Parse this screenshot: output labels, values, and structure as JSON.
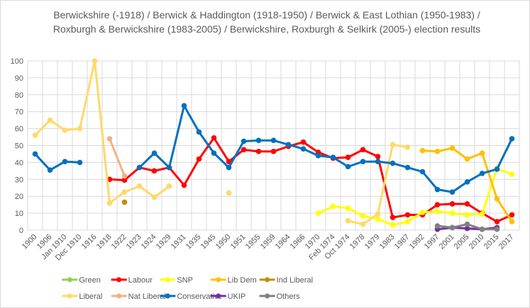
{
  "chart_data": {
    "type": "line",
    "title": "Berwickshire (-1918) / Berwick & Haddington (1918-1950) / Berwick & East Lothian (1950-1983) / Roxburgh & Berwickshire (1983-2005) / Berwickshire, Roxburgh & Selkirk (2005-) election results",
    "xlabel": "",
    "ylabel": "",
    "ylim": [
      0,
      100
    ],
    "yticks": [
      0,
      10,
      20,
      30,
      40,
      50,
      60,
      70,
      80,
      90,
      100
    ],
    "grid": true,
    "legend_position": "bottom",
    "categories": [
      "1900",
      "1906",
      "Jan 1910",
      "Dec 1910",
      "1916",
      "1918",
      "1922",
      "1923",
      "1924",
      "1929",
      "1931",
      "1935",
      "1945",
      "1950",
      "1951",
      "1955",
      "1959",
      "1964",
      "1966",
      "1970",
      "Feb 1974",
      "Oct 1974",
      "1978",
      "1979",
      "1983",
      "1987",
      "1992",
      "1997",
      "2001",
      "2005",
      "2010",
      "2015",
      "2017"
    ],
    "series": [
      {
        "name": "Green",
        "color": "#92d050",
        "values": [
          null,
          null,
          null,
          null,
          null,
          null,
          null,
          null,
          null,
          null,
          null,
          null,
          null,
          null,
          null,
          null,
          null,
          null,
          null,
          null,
          null,
          null,
          null,
          null,
          null,
          null,
          null,
          null,
          null,
          null,
          null,
          null,
          null
        ]
      },
      {
        "name": "Labour",
        "color": "#ff0000",
        "values": [
          null,
          null,
          null,
          null,
          null,
          30,
          29.5,
          37,
          35,
          37,
          26.5,
          42,
          54.5,
          40.5,
          47.5,
          46.5,
          46.5,
          49.5,
          52,
          46,
          42.5,
          43,
          47.5,
          43.5,
          7.5,
          9,
          9,
          15,
          15.5,
          15.5,
          10,
          5,
          9
        ]
      },
      {
        "name": "SNP",
        "color": "#ffff00",
        "values": [
          null,
          null,
          null,
          null,
          null,
          null,
          null,
          null,
          null,
          null,
          null,
          null,
          null,
          null,
          null,
          null,
          null,
          null,
          null,
          10,
          14,
          13,
          8.5,
          6.5,
          3,
          5,
          10.5,
          11,
          10,
          9,
          9.5,
          36.5,
          33
        ]
      },
      {
        "name": "Lib Dem",
        "color": "#ffc000",
        "values": [
          null,
          null,
          null,
          null,
          null,
          null,
          null,
          null,
          null,
          null,
          null,
          null,
          null,
          null,
          null,
          null,
          null,
          null,
          null,
          null,
          null,
          null,
          null,
          null,
          null,
          null,
          47,
          46.5,
          48.5,
          42,
          45.5,
          18.5,
          5
        ]
      },
      {
        "name": "Ind Liberal",
        "color": "#bf9000",
        "values": [
          null,
          null,
          null,
          null,
          null,
          null,
          16.5,
          null,
          null,
          null,
          null,
          null,
          null,
          null,
          null,
          null,
          null,
          null,
          null,
          null,
          null,
          null,
          null,
          null,
          null,
          null,
          null,
          null,
          null,
          null,
          null,
          null,
          null
        ]
      },
      {
        "name": "Liberal",
        "color": "#ffd966",
        "values": [
          56,
          65,
          59,
          60,
          100,
          16,
          22.5,
          26,
          19.5,
          26,
          null,
          null,
          null,
          22,
          null,
          null,
          null,
          null,
          null,
          null,
          null,
          5.5,
          3.5,
          9.5,
          50.5,
          49,
          null,
          null,
          null,
          null,
          null,
          null,
          null
        ]
      },
      {
        "name": "Nat Liberal",
        "color": "#f4b183",
        "values": [
          null,
          null,
          null,
          null,
          null,
          54,
          32,
          null,
          null,
          null,
          null,
          null,
          null,
          null,
          null,
          null,
          null,
          null,
          null,
          null,
          null,
          null,
          null,
          null,
          null,
          null,
          null,
          null,
          null,
          null,
          null,
          null,
          null
        ]
      },
      {
        "name": "Conservative",
        "color": "#0070c0",
        "values": [
          45,
          35.5,
          40.5,
          40,
          null,
          null,
          null,
          37,
          45.5,
          37,
          73.5,
          58,
          45.5,
          37,
          52.5,
          53,
          53,
          50.5,
          48,
          44,
          43,
          37.5,
          40.5,
          40.5,
          39.5,
          37,
          34.5,
          24,
          22.5,
          28.5,
          33.5,
          36,
          54
        ]
      },
      {
        "name": "UKIP",
        "color": "#7030a0",
        "values": [
          null,
          null,
          null,
          null,
          null,
          null,
          null,
          null,
          null,
          null,
          null,
          null,
          null,
          null,
          null,
          null,
          null,
          null,
          null,
          null,
          null,
          null,
          null,
          null,
          null,
          null,
          null,
          0.5,
          1.5,
          1,
          0.5,
          1.5,
          null
        ]
      },
      {
        "name": "Others",
        "color": "#808080",
        "values": [
          null,
          null,
          null,
          null,
          null,
          null,
          null,
          null,
          null,
          null,
          null,
          null,
          null,
          null,
          null,
          null,
          null,
          null,
          null,
          null,
          null,
          null,
          null,
          null,
          null,
          null,
          null,
          2.5,
          1.5,
          3.5,
          0.5,
          0.5,
          null
        ]
      }
    ]
  }
}
